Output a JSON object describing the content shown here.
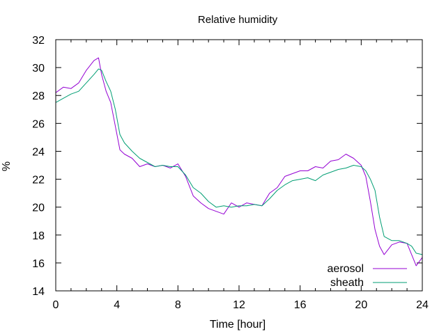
{
  "chart_data": {
    "type": "line",
    "title": "Relative humidity",
    "xlabel": "Time [hour]",
    "ylabel": "%",
    "xlim": [
      0,
      24
    ],
    "ylim": [
      14,
      32
    ],
    "xticks": [
      0,
      4,
      8,
      12,
      16,
      20,
      24
    ],
    "yticks": [
      14,
      16,
      18,
      20,
      22,
      24,
      26,
      28,
      30,
      32
    ],
    "grid": false,
    "legend_position": "bottom-right",
    "series": [
      {
        "name": "aerosol",
        "color": "#9400d3",
        "x": [
          0,
          0.5,
          1,
          1.5,
          2,
          2.5,
          2.8,
          3,
          3.3,
          3.6,
          3.9,
          4.2,
          4.5,
          5,
          5.5,
          6,
          6.5,
          7,
          7.5,
          8,
          8.5,
          9,
          9.5,
          10,
          10.5,
          11,
          11.5,
          12,
          12.5,
          13,
          13.5,
          14,
          14.5,
          15,
          15.5,
          16,
          16.5,
          17,
          17.5,
          18,
          18.5,
          19,
          19.5,
          20,
          20.3,
          20.6,
          20.9,
          21.2,
          21.5,
          22,
          22.5,
          23,
          23.3,
          23.6,
          24
        ],
        "y": [
          28.2,
          28.6,
          28.5,
          28.9,
          29.8,
          30.5,
          30.7,
          29.5,
          28.3,
          27.5,
          25.8,
          24.1,
          23.8,
          23.5,
          22.9,
          23.1,
          22.9,
          23.0,
          22.8,
          23.1,
          22.2,
          20.8,
          20.3,
          19.9,
          19.7,
          19.5,
          20.3,
          20.0,
          20.3,
          20.2,
          20.1,
          21.0,
          21.4,
          22.2,
          22.4,
          22.6,
          22.6,
          22.9,
          22.8,
          23.3,
          23.4,
          23.8,
          23.5,
          23.0,
          22.2,
          20.4,
          18.4,
          17.2,
          16.6,
          17.3,
          17.5,
          17.4,
          16.6,
          15.8,
          16.4
        ]
      },
      {
        "name": "sheath",
        "color": "#009e73",
        "x": [
          0,
          0.5,
          1,
          1.5,
          2,
          2.5,
          2.8,
          3,
          3.3,
          3.6,
          3.9,
          4.2,
          4.5,
          5,
          5.5,
          6,
          6.5,
          7,
          7.5,
          8,
          8.5,
          9,
          9.5,
          10,
          10.5,
          11,
          11.5,
          12,
          12.5,
          13,
          13.5,
          14,
          14.5,
          15,
          15.5,
          16,
          16.5,
          17,
          17.5,
          18,
          18.5,
          19,
          19.5,
          20,
          20.3,
          20.6,
          20.9,
          21.2,
          21.5,
          22,
          22.5,
          23,
          23.3,
          23.6,
          24
        ],
        "y": [
          27.5,
          27.8,
          28.1,
          28.3,
          28.9,
          29.5,
          29.9,
          29.8,
          29.0,
          28.3,
          27.0,
          25.2,
          24.6,
          24.0,
          23.5,
          23.2,
          22.9,
          23.0,
          22.9,
          22.9,
          22.3,
          21.4,
          21.0,
          20.4,
          20.0,
          20.1,
          20.0,
          20.1,
          20.1,
          20.2,
          20.1,
          20.6,
          21.2,
          21.6,
          21.9,
          22.0,
          22.1,
          21.9,
          22.3,
          22.5,
          22.7,
          22.8,
          23.0,
          22.9,
          22.6,
          22.0,
          21.2,
          19.3,
          17.9,
          17.6,
          17.6,
          17.4,
          17.2,
          16.7,
          16.6
        ]
      }
    ]
  }
}
